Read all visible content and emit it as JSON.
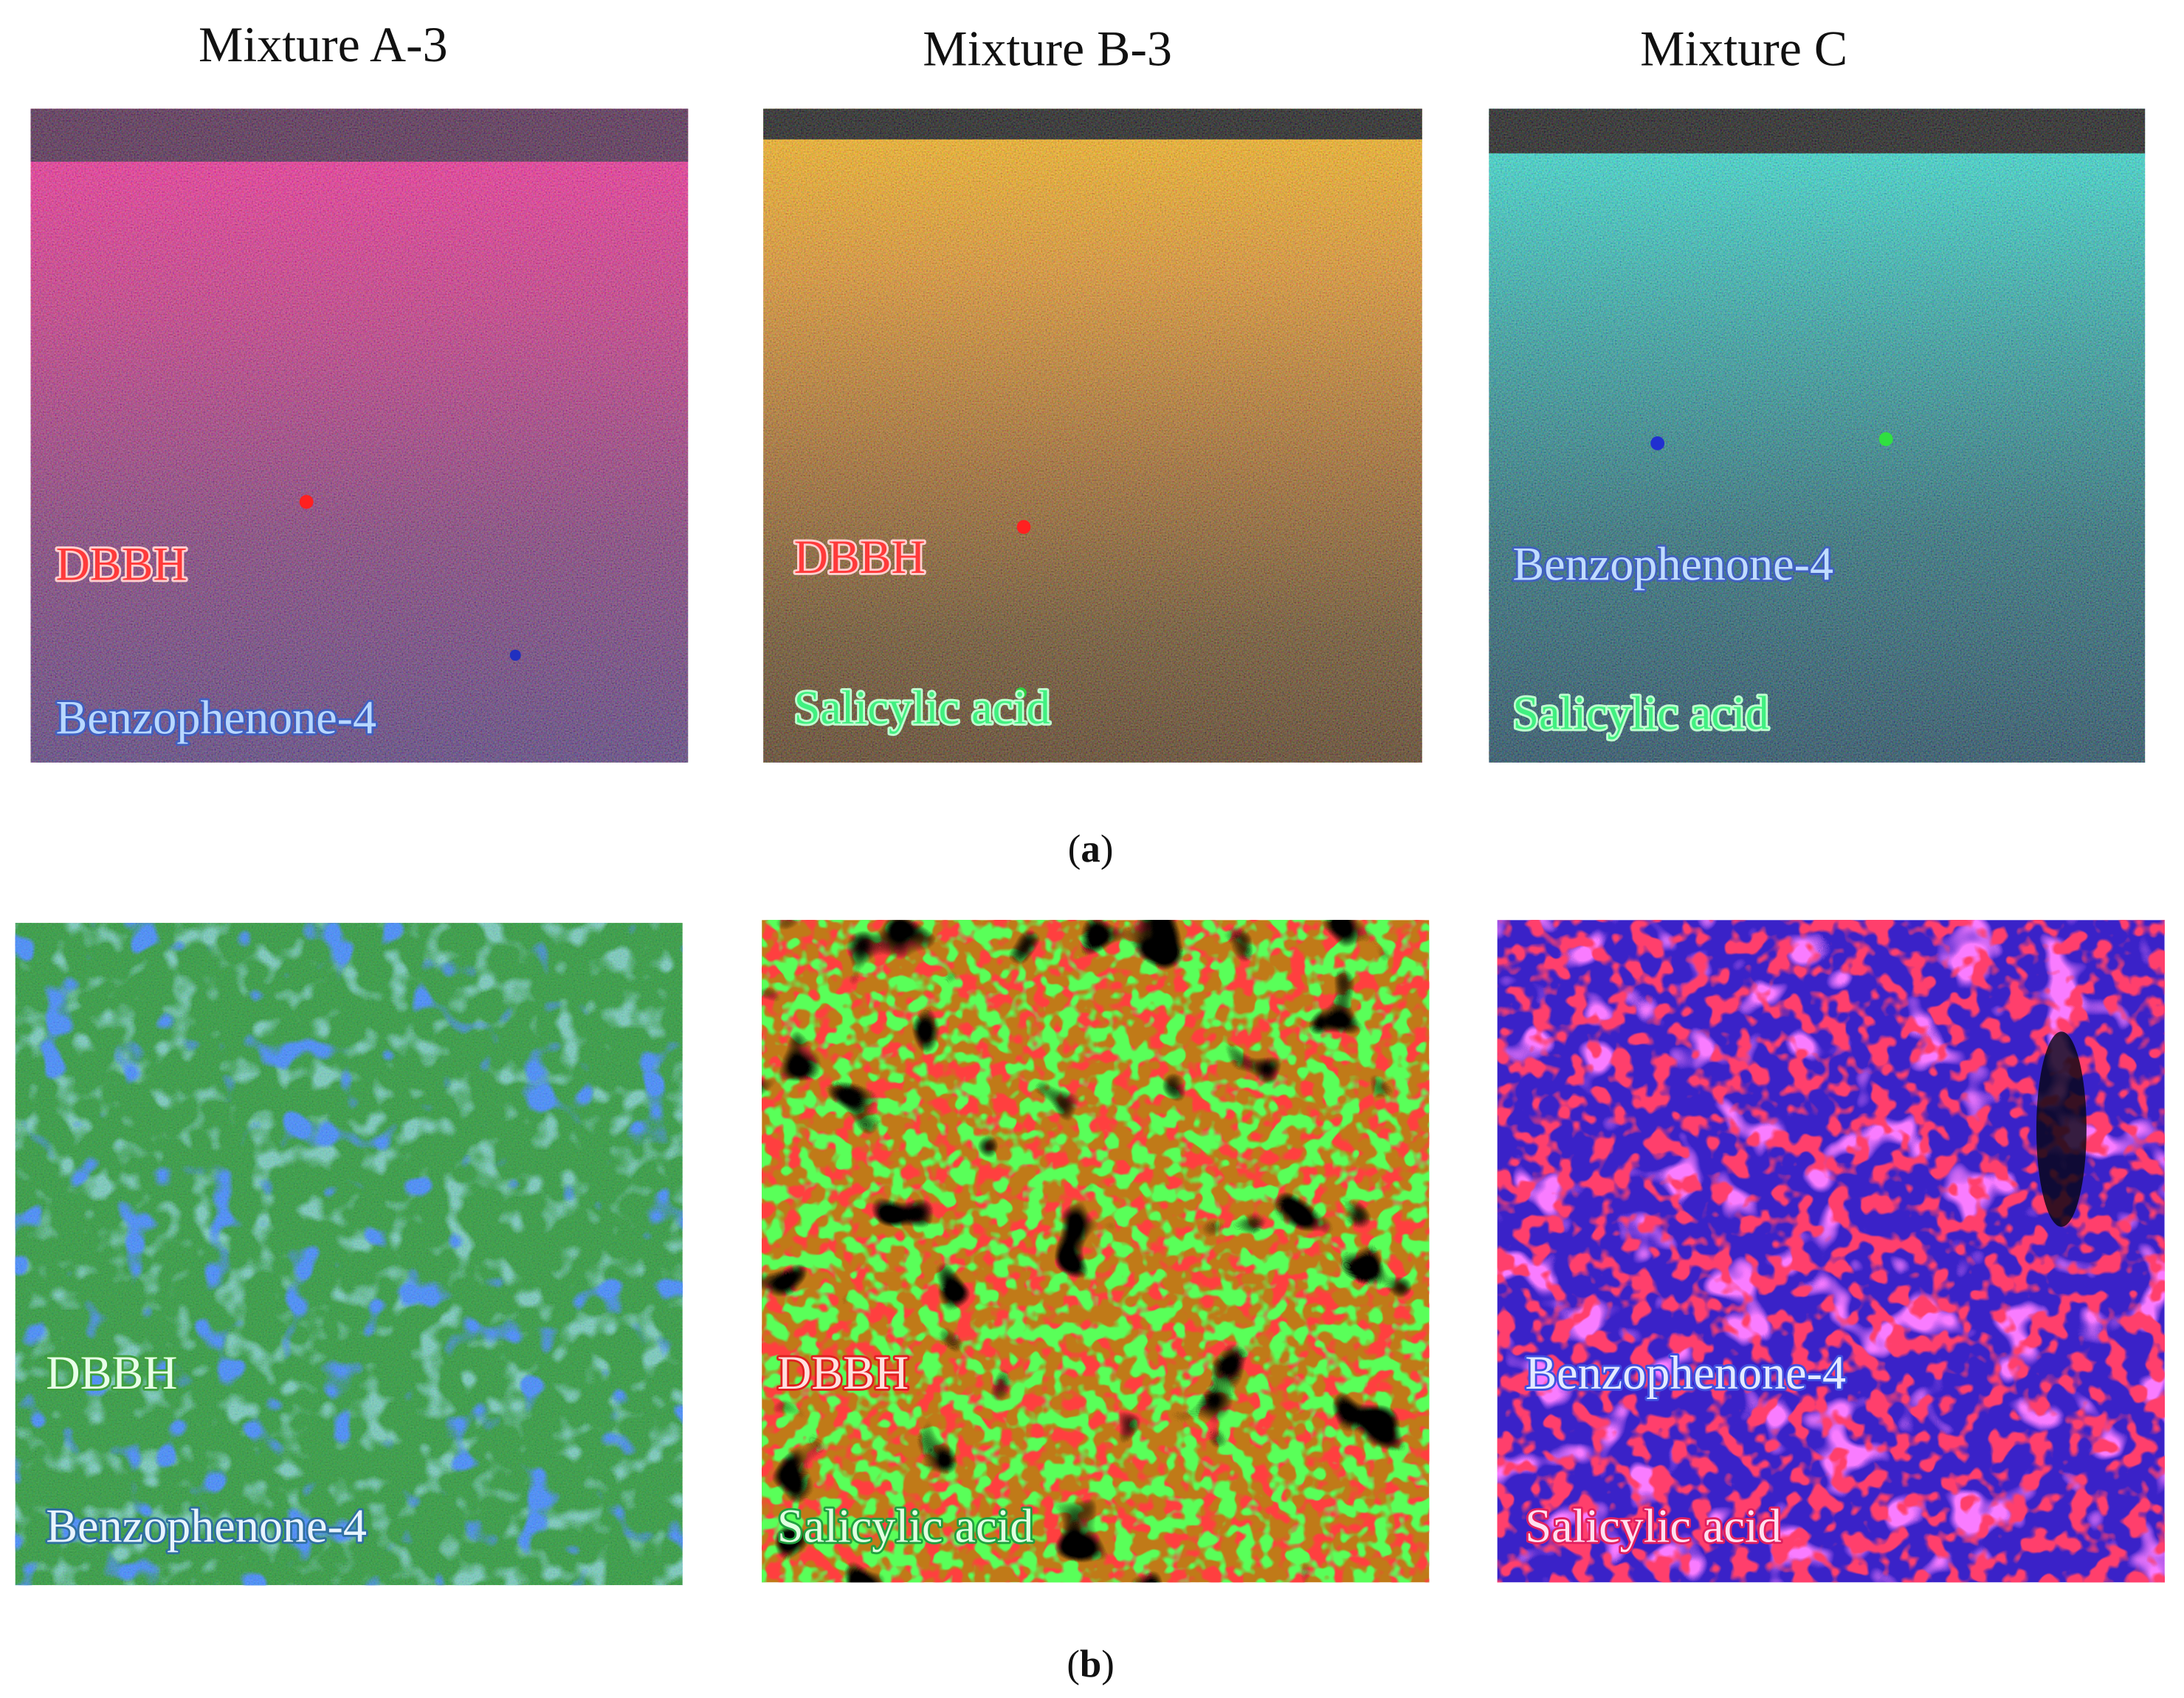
{
  "columns": [
    {
      "title": "Mixture A-3"
    },
    {
      "title": "Mixture B-3"
    },
    {
      "title": "Mixture C"
    }
  ],
  "panel_a": {
    "caption": {
      "open": "(",
      "letter": "a",
      "close": ")"
    },
    "images": [
      {
        "labels": [
          "DBBH",
          "Benzophenone-4"
        ]
      },
      {
        "labels": [
          "DBBH",
          "Salicylic acid"
        ]
      },
      {
        "labels": [
          "Benzophenone-4",
          "Salicylic acid"
        ]
      }
    ]
  },
  "panel_b": {
    "caption": {
      "open": "(",
      "letter": "b",
      "close": ")"
    },
    "images": [
      {
        "labels": [
          "DBBH",
          "Benzophenone-4"
        ]
      },
      {
        "labels": [
          "DBBH",
          "Salicylic acid"
        ]
      },
      {
        "labels": [
          "Benzophenone-4",
          "Salicylic acid"
        ]
      }
    ]
  }
}
